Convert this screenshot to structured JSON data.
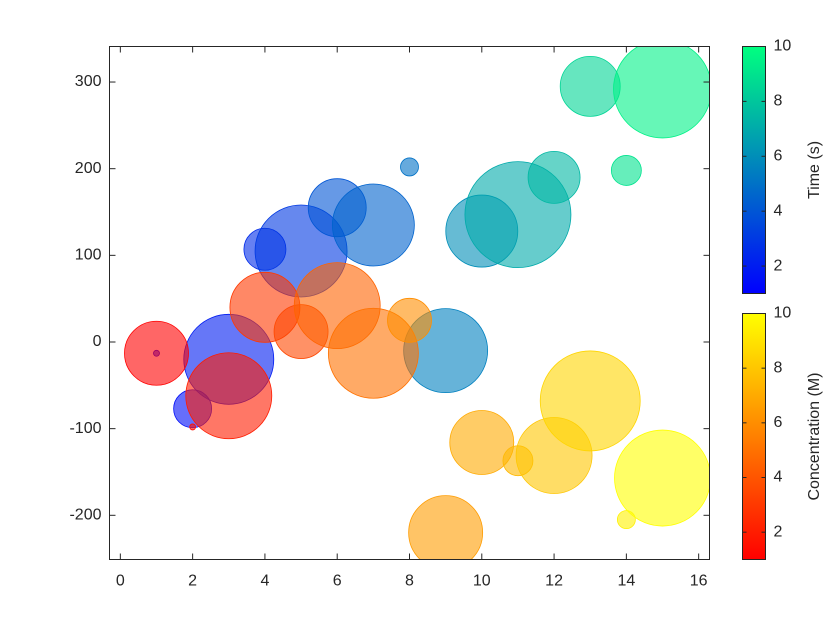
{
  "chart_data": {
    "type": "bubble",
    "xlim": [
      -0.3,
      16.3
    ],
    "ylim": [
      -251,
      341
    ],
    "xticks": [
      0,
      2,
      4,
      6,
      8,
      10,
      12,
      14,
      16
    ],
    "yticks": [
      -200,
      -100,
      0,
      100,
      200,
      300
    ],
    "series": [
      {
        "colorbar_label": "Time (s)",
        "colormap": "winter",
        "clim": [
          1,
          10
        ],
        "cticks": [
          2,
          4,
          6,
          8,
          10
        ],
        "x": [
          1,
          2,
          3,
          4,
          5,
          6,
          7,
          8,
          9,
          10,
          11,
          12,
          13,
          14,
          15
        ],
        "y": [
          -13,
          -77,
          -20,
          107,
          105,
          155,
          135,
          202,
          -10,
          128,
          147,
          190,
          295,
          198,
          292
        ],
        "size": [
          3,
          19,
          45,
          21,
          46,
          29,
          41,
          9,
          42,
          36,
          53,
          26,
          30,
          15,
          49
        ],
        "color": [
          1,
          1.5,
          2,
          2.5,
          3,
          4,
          4.5,
          5,
          5.5,
          6,
          7,
          7.5,
          8.5,
          9,
          9.5
        ]
      },
      {
        "colorbar_label": "Concentration (M)",
        "colormap": "autumn",
        "clim": [
          1,
          10
        ],
        "cticks": [
          2,
          4,
          6,
          8,
          10
        ],
        "x": [
          1,
          2,
          3,
          4,
          5,
          6,
          7,
          8,
          9,
          10,
          11,
          12,
          13,
          14,
          15
        ],
        "y": [
          -13,
          -98,
          -62,
          40,
          12,
          42,
          -13,
          25,
          -220,
          -116,
          -137,
          -131,
          -68,
          -205,
          -157
        ],
        "size": [
          32,
          3,
          43,
          35,
          27,
          43,
          45,
          22,
          37,
          32,
          15,
          38,
          50,
          9,
          48
        ],
        "color": [
          1,
          1.5,
          2,
          3,
          3.5,
          4.5,
          5,
          6,
          6.5,
          7,
          7.5,
          8,
          8.5,
          9.5,
          10
        ]
      }
    ]
  }
}
